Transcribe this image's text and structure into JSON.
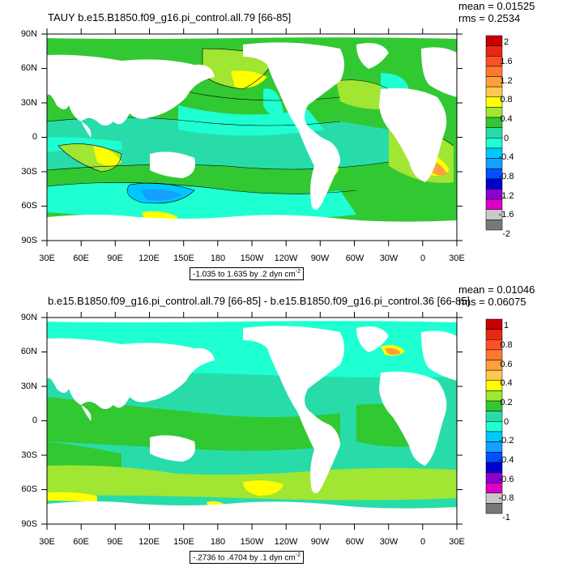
{
  "panels": [
    {
      "title": "TAUY b.e15.B1850.f09_g16.pi_control.all.79 [66-85]",
      "mean": "mean = 0.01525",
      "rms": "rms = 0.2534",
      "range_label": "-1.035 to 1.635 by .2 dyn cm",
      "range_unit_exp": "-2",
      "colorbar_labels": [
        "2",
        "1.6",
        "1.2",
        "0.8",
        "0.4",
        "0",
        "-0.4",
        "-0.8",
        "-1.2",
        "-1.6",
        "-2"
      ],
      "colorbar_colors": [
        "#c80000",
        "#e62814",
        "#ff5028",
        "#ff7830",
        "#ffa03c",
        "#ffc850",
        "#ffff00",
        "#a0e632",
        "#32c832",
        "#28dcaa",
        "#1effd2",
        "#00c8ff",
        "#14a0ff",
        "#0050ff",
        "#0000cd",
        "#8c00d2",
        "#dc00c8",
        "#c8c8c8",
        "#787878"
      ]
    },
    {
      "title": "b.e15.B1850.f09_g16.pi_control.all.79 [66-85] - b.e15.B1850.f09_g16.pi_control.36 [66-85]",
      "mean": "mean = 0.01046",
      "rms": "rms = 0.06075",
      "range_label": "-.2736 to .4704 by .1 dyn cm",
      "range_unit_exp": "-2",
      "colorbar_labels": [
        "1",
        "0.8",
        "0.6",
        "0.4",
        "0.2",
        "0",
        "-0.2",
        "-0.4",
        "-0.6",
        "-0.8",
        "-1"
      ],
      "colorbar_colors": [
        "#c80000",
        "#e62814",
        "#ff5028",
        "#ff7830",
        "#ffa03c",
        "#ffc850",
        "#ffff00",
        "#a0e632",
        "#32c832",
        "#28dcaa",
        "#1effd2",
        "#00c8ff",
        "#14a0ff",
        "#0050ff",
        "#0000cd",
        "#8c00d2",
        "#dc00c8",
        "#c8c8c8",
        "#787878"
      ]
    }
  ],
  "axes": {
    "lat_labels": [
      "90N",
      "60N",
      "30N",
      "0",
      "30S",
      "60S",
      "90S"
    ],
    "lon_labels": [
      "30E",
      "60E",
      "90E",
      "120E",
      "150E",
      "180",
      "150W",
      "120W",
      "90W",
      "60W",
      "30W",
      "0",
      "30E"
    ]
  },
  "colors": {
    "land": "#ffffff",
    "ocean_base": "#32c832",
    "ocean_cyan": "#1effd2",
    "ocean_teal": "#28dcaa",
    "ocean_lightblue": "#00c8ff",
    "ocean_blue": "#14a0ff",
    "ocean_yellowgreen": "#a0e632",
    "ocean_yellow": "#ffff00",
    "ocean_orange": "#ffa03c",
    "ocean_red": "#e62814"
  }
}
